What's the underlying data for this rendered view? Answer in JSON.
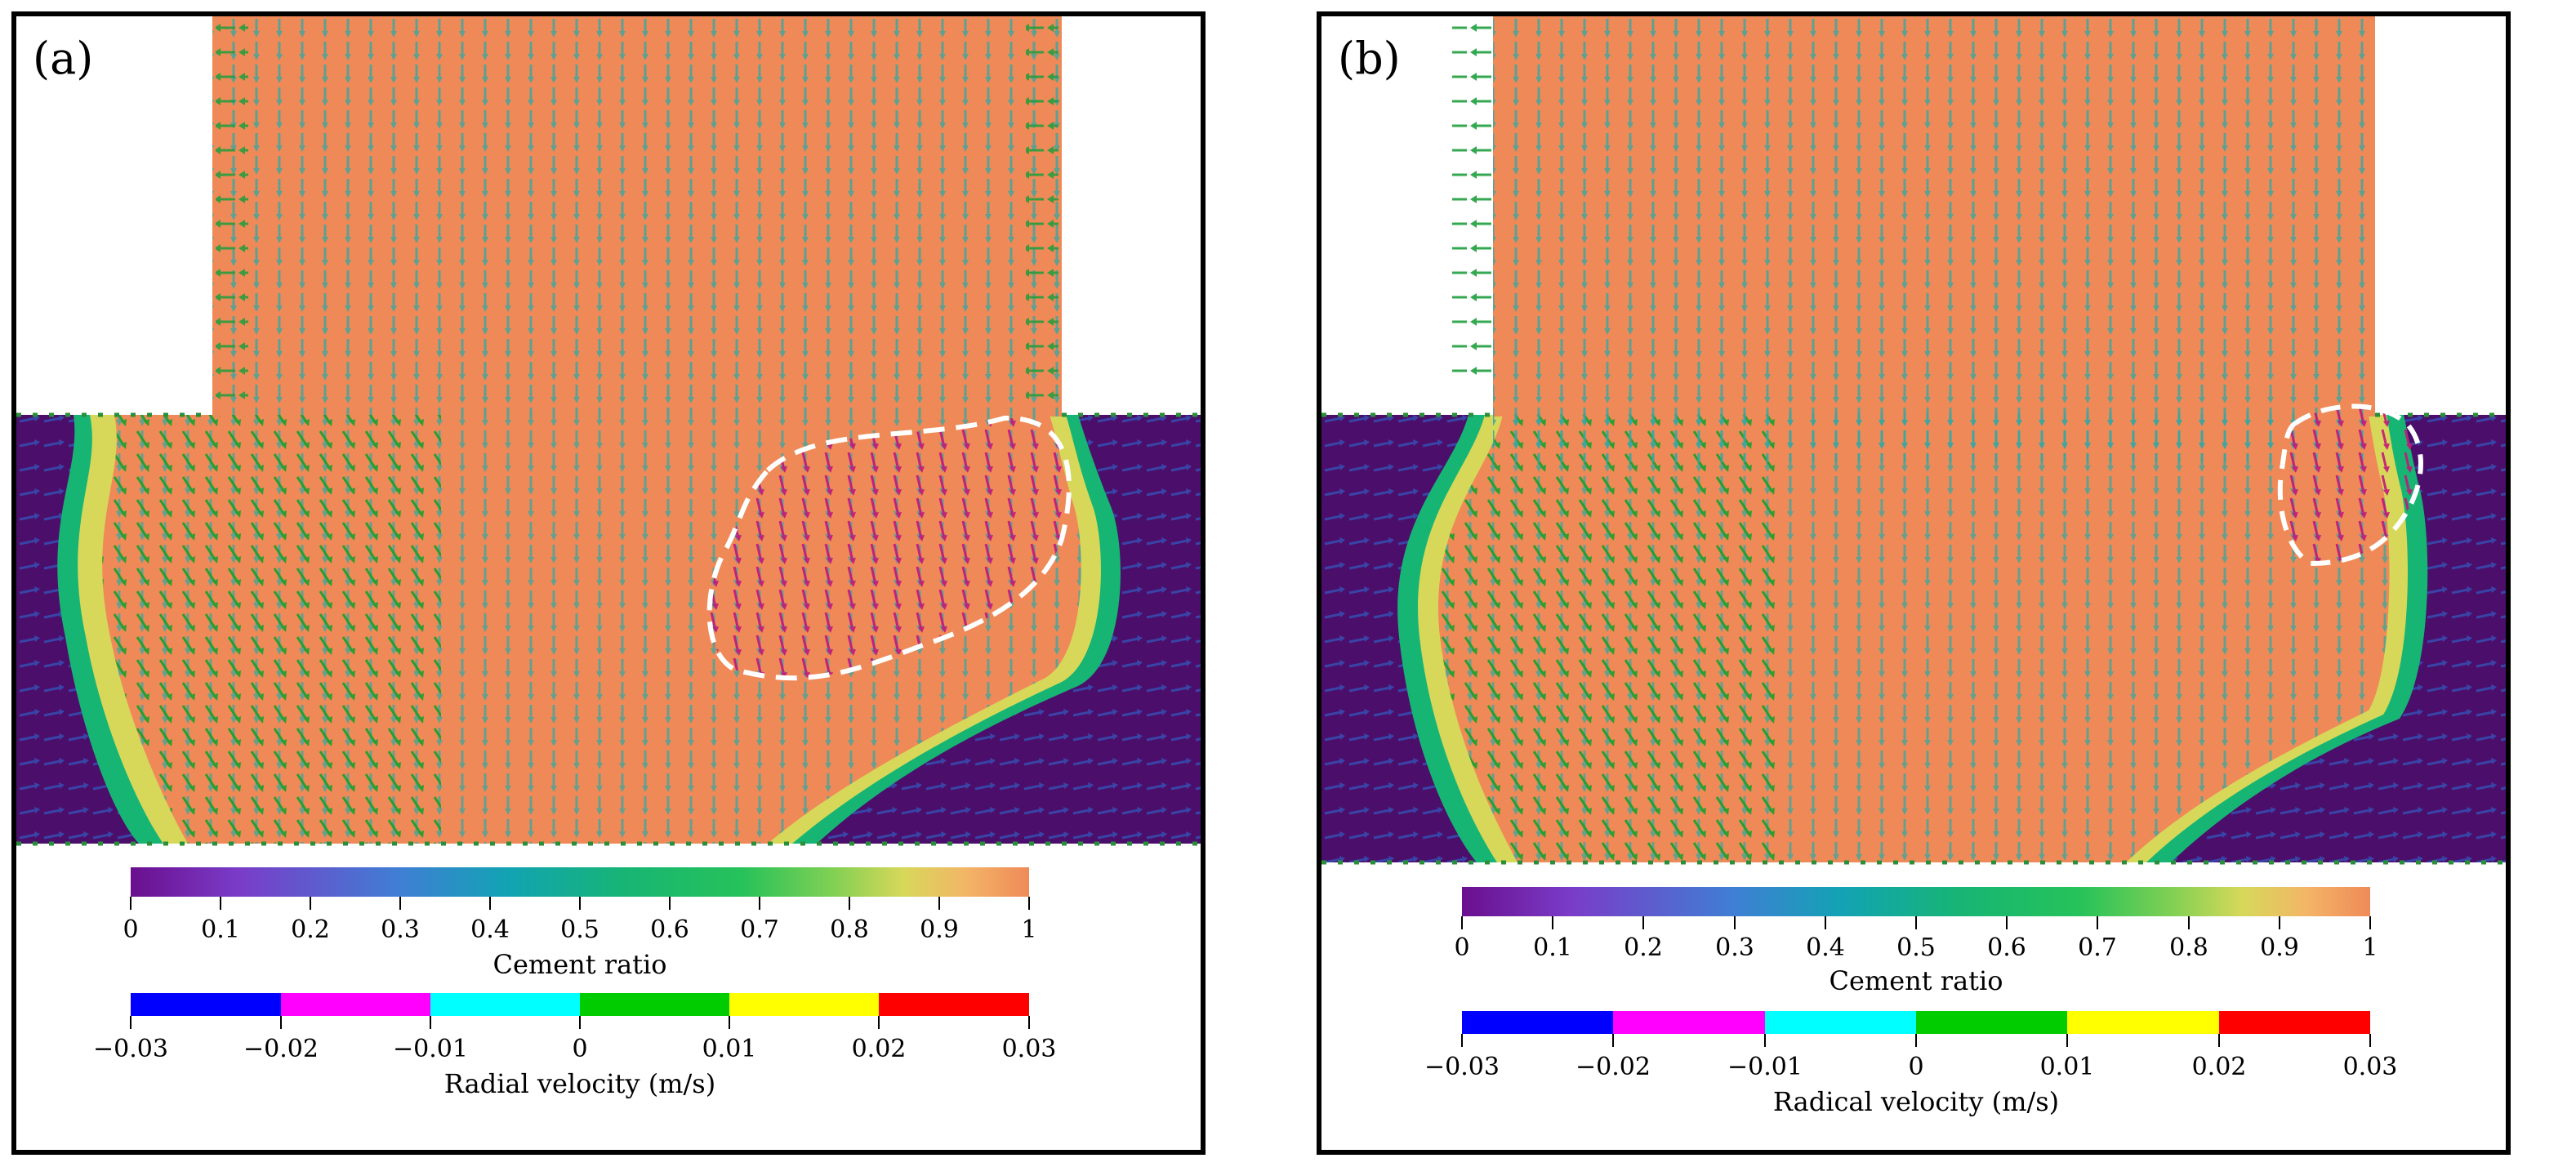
{
  "panels": [
    {
      "id": "a",
      "label": "(a)",
      "cement_ticks": [
        "0",
        "0.1",
        "0.2",
        "0.3",
        "0.4",
        "0.5",
        "0.6",
        "0.7",
        "0.8",
        "0.9",
        "1"
      ],
      "cement_title": "Cement ratio",
      "velocity_ticks": [
        "−0.03",
        "−0.02",
        "−0.01",
        "0",
        "0.01",
        "0.02",
        "0.03"
      ],
      "velocity_title": "Radial velocity (m/s)",
      "highlight_region": "dashed white outline around downward-flow zone"
    },
    {
      "id": "b",
      "label": "(b)",
      "cement_ticks": [
        "0",
        "0.1",
        "0.2",
        "0.3",
        "0.4",
        "0.5",
        "0.6",
        "0.7",
        "0.8",
        "0.9",
        "1"
      ],
      "cement_title": "Cement ratio",
      "velocity_ticks": [
        "−0.03",
        "−0.02",
        "−0.01",
        "0",
        "0.01",
        "0.02",
        "0.03"
      ],
      "velocity_title": "Radical velocity (m/s)",
      "highlight_region": "dashed white outline around downward-flow zone"
    }
  ],
  "colors": {
    "cement_scale": [
      "#6a0f8e",
      "#7a3cc8",
      "#3f7fd4",
      "#12a3b3",
      "#17b574",
      "#26c25a",
      "#7fd053",
      "#d7d85a",
      "#f3b567",
      "#f39858",
      "#ef8a58"
    ],
    "velocity_bins": [
      "#0000ff",
      "#ff00ff",
      "#00ffff",
      "#00cc00",
      "#ffff00",
      "#ff0000"
    ],
    "cement_fill": "#ef8a58",
    "background_fluid": "#4b0f6b"
  }
}
